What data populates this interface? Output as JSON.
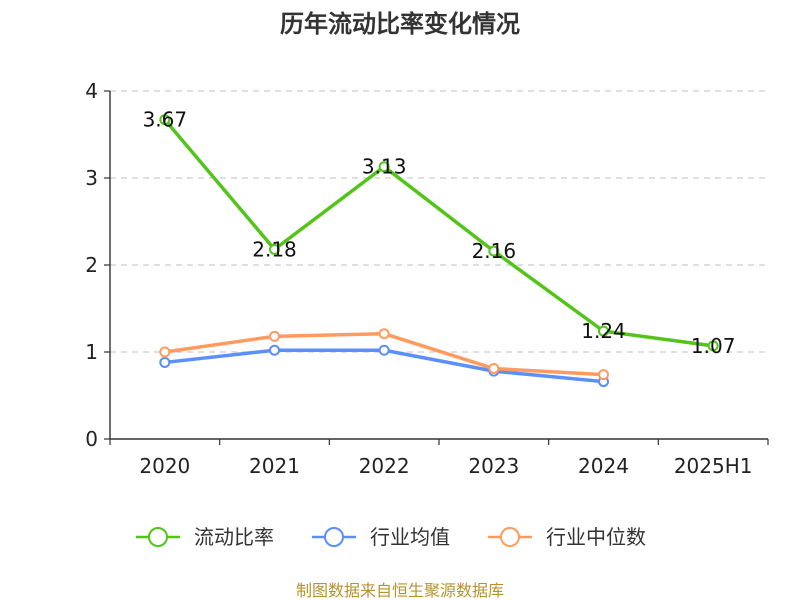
{
  "chart_data": {
    "type": "line",
    "title": "历年流动比率变化情况",
    "categories": [
      "2020",
      "2021",
      "2022",
      "2023",
      "2024",
      "2025H1"
    ],
    "yticks": [
      "0",
      "1",
      "2",
      "3",
      "4"
    ],
    "ylim": [
      0,
      4
    ],
    "grid": true,
    "legend_position": "bottom",
    "series": [
      {
        "name": "流动比率",
        "color": "#52c41a",
        "values": [
          3.67,
          2.18,
          3.13,
          2.16,
          1.24,
          1.07
        ],
        "labels": [
          "3.67",
          "2.18",
          "3.13",
          "2.16",
          "1.24",
          "1.07"
        ],
        "show_labels": true
      },
      {
        "name": "行业均值",
        "color": "#5b8ff9",
        "values": [
          0.88,
          1.02,
          1.02,
          0.78,
          0.66,
          null
        ],
        "show_labels": false
      },
      {
        "name": "行业中位数",
        "color": "#ff9b5e",
        "values": [
          1.0,
          1.18,
          1.21,
          0.81,
          0.74,
          null
        ],
        "show_labels": false
      }
    ],
    "source": "制图数据来自恒生聚源数据库"
  }
}
